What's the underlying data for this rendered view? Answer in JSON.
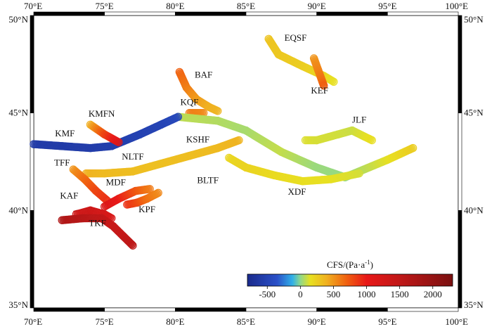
{
  "map": {
    "lon_range": [
      70,
      100
    ],
    "lat_range": [
      35,
      50
    ],
    "lon_ticks": [
      {
        "value": 70,
        "label": "70°E"
      },
      {
        "value": 75,
        "label": "75°E"
      },
      {
        "value": 80,
        "label": "80°E"
      },
      {
        "value": 85,
        "label": "85°E"
      },
      {
        "value": 90,
        "label": "90°E"
      },
      {
        "value": 95,
        "label": "95°E"
      },
      {
        "value": 100,
        "label": "100°E"
      }
    ],
    "lat_ticks": [
      {
        "value": 50,
        "label": "50°N"
      },
      {
        "value": 45,
        "label": "45°N"
      },
      {
        "value": 40,
        "label": "40°N"
      },
      {
        "value": 35,
        "label": "35°N"
      }
    ]
  },
  "colorbar": {
    "title": "CFS/(Pa·a",
    "title_sup": "-1",
    "title_end": ")",
    "tick_values": [
      -500,
      0,
      500,
      1000,
      1500,
      2000
    ],
    "tick_labels": [
      "-500",
      "0",
      "500",
      "1000",
      "1500",
      "2000"
    ],
    "stops": [
      {
        "value": -800,
        "color": "#1a2a8c"
      },
      {
        "value": -350,
        "color": "#2a50c8"
      },
      {
        "value": -120,
        "color": "#30b0e8"
      },
      {
        "value": 0,
        "color": "#8fd88a"
      },
      {
        "value": 150,
        "color": "#e8e020"
      },
      {
        "value": 400,
        "color": "#f0b020"
      },
      {
        "value": 700,
        "color": "#f06010"
      },
      {
        "value": 1000,
        "color": "#e81818"
      },
      {
        "value": 1500,
        "color": "#c01818"
      },
      {
        "value": 2300,
        "color": "#7a1010"
      }
    ],
    "range": [
      -800,
      2300
    ]
  },
  "faults": [
    {
      "name": "EQSF",
      "label_at": [
        88.5,
        48.7
      ],
      "segments": [
        {
          "path": [
            [
              86.6,
              48.8
            ],
            [
              87.3,
              48.0
            ],
            [
              89.0,
              47.4
            ],
            [
              90.5,
              46.9
            ],
            [
              91.2,
              46.6
            ]
          ],
          "values": [
            300,
            280,
            250,
            200,
            150
          ]
        }
      ]
    },
    {
      "name": "KEF",
      "label_at": [
        90.2,
        46.0
      ],
      "segments": [
        {
          "path": [
            [
              89.8,
              47.8
            ],
            [
              90.1,
              47.2
            ],
            [
              90.4,
              46.6
            ],
            [
              90.5,
              46.4
            ]
          ],
          "values": [
            500,
            560,
            650,
            720
          ]
        }
      ]
    },
    {
      "name": "BAF",
      "label_at": [
        82.0,
        46.8
      ],
      "segments": [
        {
          "path": [
            [
              80.3,
              47.1
            ],
            [
              80.8,
              46.3
            ],
            [
              81.5,
              45.7
            ],
            [
              82.4,
              45.3
            ],
            [
              83.0,
              45.1
            ]
          ],
          "values": [
            700,
            600,
            480,
            400,
            380
          ]
        }
      ]
    },
    {
      "name": "KQF",
      "label_at": [
        81.0,
        45.4
      ],
      "segments": [
        {
          "path": [
            [
              81.0,
              45.0
            ],
            [
              82.0,
              45.0
            ]
          ],
          "values": [
            600,
            550
          ]
        }
      ]
    },
    {
      "name": "KSHF",
      "label_at": [
        81.6,
        43.5
      ],
      "segments": [
        {
          "path": [
            [
              80.2,
              44.8
            ],
            [
              83.0,
              44.6
            ],
            [
              85.0,
              44.1
            ],
            [
              87.5,
              43.0
            ],
            [
              90.0,
              42.2
            ],
            [
              92.0,
              41.7
            ],
            [
              95.0,
              42.6
            ],
            [
              96.8,
              43.2
            ]
          ],
          "values": [
            80,
            60,
            40,
            90,
            20,
            10,
            140,
            250
          ]
        }
      ]
    },
    {
      "name": "JLF",
      "label_at": [
        93.0,
        44.5
      ],
      "segments": [
        {
          "path": [
            [
              89.2,
              43.6
            ],
            [
              90.0,
              43.6
            ],
            [
              91.5,
              43.9
            ],
            [
              92.5,
              44.1
            ],
            [
              93.9,
              43.6
            ]
          ],
          "values": [
            130,
            120,
            110,
            100,
            160
          ]
        }
      ]
    },
    {
      "name": "KMF",
      "label_at": [
        72.2,
        43.8
      ],
      "segments": [
        {
          "path": [
            [
              70.0,
              43.4
            ],
            [
              72.0,
              43.3
            ],
            [
              74.0,
              43.2
            ],
            [
              75.5,
              43.3
            ],
            [
              77.5,
              43.9
            ],
            [
              79.0,
              44.4
            ],
            [
              80.2,
              44.8
            ]
          ],
          "values": [
            -600,
            -600,
            -580,
            -560,
            -520,
            -500,
            -450
          ]
        }
      ]
    },
    {
      "name": "KMFN",
      "label_at": [
        74.8,
        44.8
      ],
      "segments": [
        {
          "path": [
            [
              74.0,
              44.4
            ],
            [
              75.0,
              43.9
            ],
            [
              76.0,
              43.5
            ]
          ],
          "values": [
            400,
            800,
            1100
          ]
        }
      ]
    },
    {
      "name": "NLTF",
      "label_at": [
        77.0,
        42.6
      ],
      "segments": [
        {
          "path": [
            [
              73.7,
              41.9
            ],
            [
              75.0,
              41.9
            ],
            [
              77.0,
              42.0
            ],
            [
              79.0,
              42.4
            ],
            [
              81.0,
              42.8
            ],
            [
              83.0,
              43.2
            ],
            [
              84.5,
              43.6
            ]
          ],
          "values": [
            400,
            350,
            330,
            320,
            330,
            350,
            380
          ]
        }
      ]
    },
    {
      "name": "BLTF",
      "label_at": [
        82.3,
        41.4
      ],
      "segments": [
        {
          "path": [
            [
              83.8,
              42.7
            ],
            [
              85.0,
              42.2
            ],
            [
              87.0,
              41.8
            ],
            [
              89.0,
              41.5
            ],
            [
              91.0,
              41.6
            ],
            [
              93.0,
              41.9
            ]
          ],
          "values": [
            200,
            220,
            180,
            160,
            150,
            120
          ]
        }
      ]
    },
    {
      "name": "XDF",
      "label_at": [
        88.6,
        40.8
      ],
      "segments": []
    },
    {
      "name": "TFF",
      "label_at": [
        72.0,
        42.3
      ],
      "segments": [
        {
          "path": [
            [
              72.8,
              42.1
            ],
            [
              73.6,
              41.6
            ],
            [
              74.4,
              41.0
            ],
            [
              75.2,
              40.5
            ]
          ],
          "values": [
            500,
            650,
            800,
            900
          ]
        }
      ]
    },
    {
      "name": "MDF",
      "label_at": [
        75.8,
        41.3
      ],
      "segments": [
        {
          "path": [
            [
              75.0,
              40.2
            ],
            [
              76.0,
              40.6
            ],
            [
              77.2,
              41.0
            ],
            [
              78.2,
              41.1
            ]
          ],
          "values": [
            1200,
            1000,
            750,
            600
          ]
        }
      ]
    },
    {
      "name": "KPF",
      "label_at": [
        78.0,
        39.9
      ],
      "segments": [
        {
          "path": [
            [
              76.6,
              40.3
            ],
            [
              77.3,
              40.4
            ],
            [
              78.0,
              40.6
            ],
            [
              78.8,
              40.9
            ]
          ],
          "values": [
            900,
            800,
            650,
            550
          ]
        }
      ]
    },
    {
      "name": "KAF",
      "label_at": [
        72.5,
        40.6
      ],
      "segments": [
        {
          "path": [
            [
              73.0,
              39.8
            ],
            [
              74.0,
              40.0
            ],
            [
              75.0,
              39.8
            ],
            [
              75.5,
              39.6
            ]
          ],
          "values": [
            1300,
            1350,
            1250,
            1200
          ]
        }
      ]
    },
    {
      "name": "TKF",
      "label_at": [
        74.5,
        39.2
      ],
      "segments": [
        {
          "path": [
            [
              72.0,
              39.5
            ],
            [
              73.5,
              39.6
            ],
            [
              74.8,
              39.6
            ],
            [
              75.6,
              39.2
            ],
            [
              76.3,
              38.7
            ],
            [
              77.0,
              38.2
            ]
          ],
          "values": [
            1700,
            1600,
            1500,
            1400,
            1450,
            1550
          ]
        }
      ]
    }
  ],
  "red_dash": {
    "path": [
      [
        72.8,
        39.95
      ],
      [
        73.1,
        40.0
      ]
    ],
    "value": 1500
  }
}
